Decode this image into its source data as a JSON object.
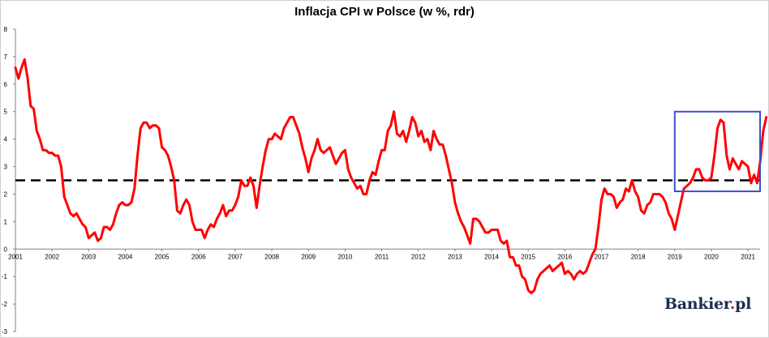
{
  "logo": {
    "name": "Bankier",
    "dot": ".",
    "tld": "pl"
  },
  "chart_data": {
    "type": "line",
    "title": "Inflacja CPI w Polsce (w %, rdr)",
    "xlabel": "",
    "ylabel": "",
    "xlim": [
      2001.0,
      2021.33
    ],
    "ylim": [
      -3,
      8
    ],
    "yticks": [
      "-3",
      "-2",
      "-1",
      "0",
      "1",
      "2",
      "3",
      "4",
      "5",
      "6",
      "7",
      "8"
    ],
    "xticks": [
      "2001",
      "2002",
      "2003",
      "2004",
      "2005",
      "2006",
      "2007",
      "2008",
      "2009",
      "2010",
      "2011",
      "2012",
      "2013",
      "2014",
      "2015",
      "2016",
      "2017",
      "2018",
      "2019",
      "2020",
      "2021"
    ],
    "grid": false,
    "series_color": "#ff0000",
    "reference_color": "#000000",
    "highlight_color": "#3d4ec9",
    "reference_line": {
      "y": 2.5,
      "style": "dashed"
    },
    "highlight_box": {
      "x": [
        2019.0,
        2021.33
      ],
      "y": [
        2.1,
        5.0
      ]
    },
    "series": [
      {
        "x_start": "2001-01",
        "values": [
          6.6,
          6.2,
          6.6,
          6.9,
          6.2,
          5.2,
          5.1,
          4.3,
          4.0,
          3.6,
          3.6,
          3.5,
          3.5,
          3.4,
          3.4,
          3.0,
          1.9,
          1.6,
          1.3,
          1.2,
          1.3,
          1.1,
          0.9,
          0.8,
          0.4,
          0.5,
          0.6,
          0.3,
          0.4,
          0.8,
          0.8,
          0.7,
          0.9,
          1.3,
          1.6,
          1.7,
          1.6,
          1.6,
          1.7,
          2.2,
          3.4,
          4.4,
          4.6,
          4.6,
          4.4,
          4.5,
          4.5,
          4.4,
          3.7,
          3.6,
          3.4,
          3.0,
          2.5,
          1.4,
          1.3,
          1.6,
          1.8,
          1.6,
          1.0,
          0.7,
          0.7,
          0.7,
          0.4,
          0.7,
          0.9,
          0.8,
          1.1,
          1.3,
          1.6,
          1.2,
          1.4,
          1.4,
          1.6,
          1.9,
          2.5,
          2.3,
          2.3,
          2.6,
          2.3,
          1.5,
          2.3,
          3.0,
          3.6,
          4.0,
          4.0,
          4.2,
          4.1,
          4.0,
          4.4,
          4.6,
          4.8,
          4.8,
          4.5,
          4.2,
          3.7,
          3.3,
          2.8,
          3.3,
          3.6,
          4.0,
          3.6,
          3.5,
          3.6,
          3.7,
          3.4,
          3.1,
          3.3,
          3.5,
          3.6,
          2.9,
          2.6,
          2.4,
          2.2,
          2.3,
          2.0,
          2.0,
          2.5,
          2.8,
          2.7,
          3.2,
          3.6,
          3.6,
          4.3,
          4.5,
          5.0,
          4.2,
          4.1,
          4.3,
          3.9,
          4.3,
          4.8,
          4.6,
          4.1,
          4.3,
          3.9,
          4.0,
          3.6,
          4.3,
          4.0,
          3.8,
          3.8,
          3.4,
          2.9,
          2.4,
          1.7,
          1.3,
          1.0,
          0.8,
          0.5,
          0.2,
          1.1,
          1.1,
          1.0,
          0.8,
          0.6,
          0.6,
          0.7,
          0.7,
          0.7,
          0.3,
          0.2,
          0.3,
          -0.3,
          -0.3,
          -0.6,
          -0.6,
          -1.0,
          -1.1,
          -1.5,
          -1.6,
          -1.5,
          -1.1,
          -0.9,
          -0.8,
          -0.7,
          -0.6,
          -0.8,
          -0.7,
          -0.6,
          -0.5,
          -0.9,
          -0.8,
          -0.9,
          -1.1,
          -0.9,
          -0.8,
          -0.9,
          -0.8,
          -0.5,
          -0.2,
          0.0,
          0.8,
          1.8,
          2.2,
          2.0,
          2.0,
          1.9,
          1.5,
          1.7,
          1.8,
          2.2,
          2.1,
          2.5,
          2.1,
          1.9,
          1.4,
          1.3,
          1.6,
          1.7,
          2.0,
          2.0,
          2.0,
          1.9,
          1.7,
          1.3,
          1.1,
          0.7,
          1.2,
          1.7,
          2.2,
          2.3,
          2.4,
          2.6,
          2.9,
          2.9,
          2.6,
          2.5,
          2.5,
          2.6,
          3.4,
          4.4,
          4.7,
          4.6,
          3.4,
          2.9,
          3.3,
          3.1,
          2.9,
          3.2,
          3.1,
          3.0,
          2.4,
          2.7,
          2.4,
          3.2,
          4.3,
          4.8
        ]
      }
    ]
  }
}
